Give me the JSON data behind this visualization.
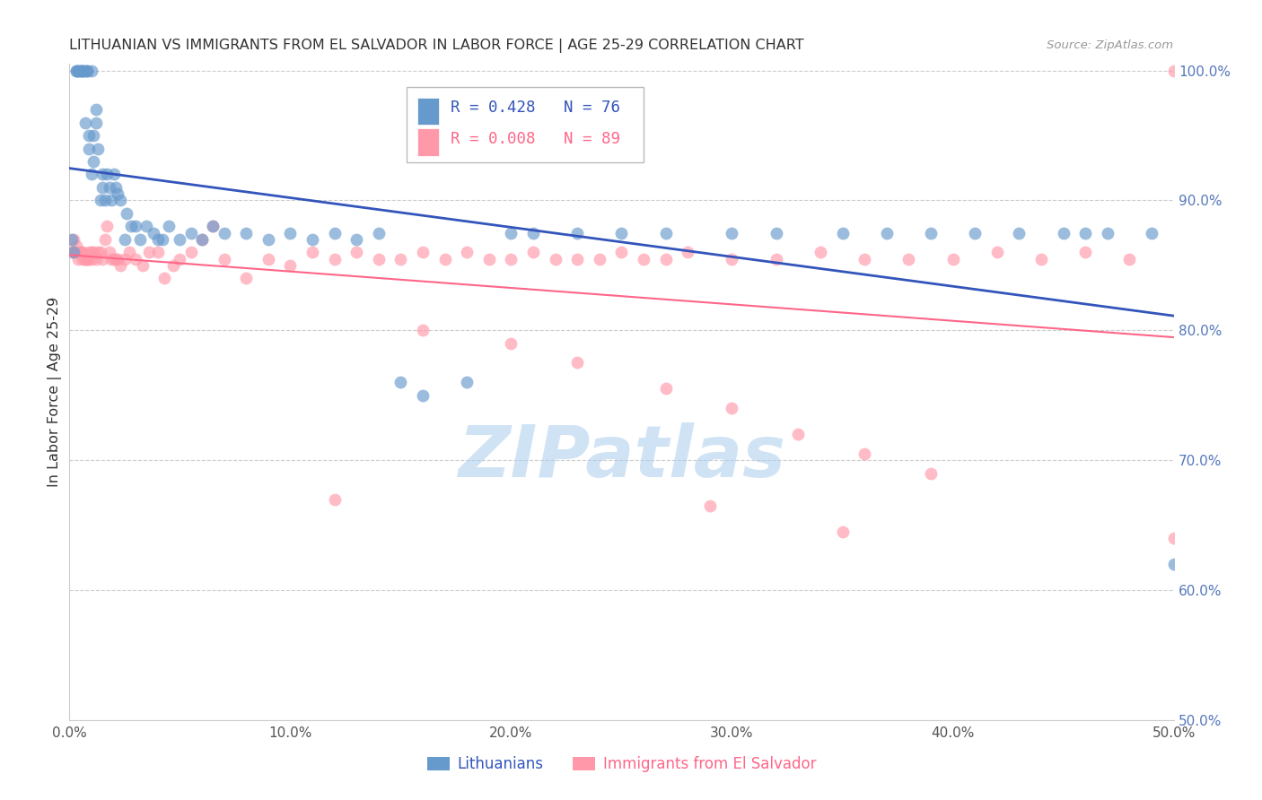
{
  "title": "LITHUANIAN VS IMMIGRANTS FROM EL SALVADOR IN LABOR FORCE | AGE 25-29 CORRELATION CHART",
  "source": "Source: ZipAtlas.com",
  "ylabel": "In Labor Force | Age 25-29",
  "xlim": [
    0.0,
    0.5
  ],
  "ylim": [
    0.5,
    1.005
  ],
  "xtick_vals": [
    0.0,
    0.1,
    0.2,
    0.3,
    0.4,
    0.5
  ],
  "ytick_vals": [
    0.5,
    0.6,
    0.7,
    0.8,
    0.9,
    1.0
  ],
  "xtick_labels": [
    "0.0%",
    "10.0%",
    "20.0%",
    "30.0%",
    "40.0%",
    "50.0%"
  ],
  "ytick_labels": [
    "50.0%",
    "60.0%",
    "70.0%",
    "80.0%",
    "90.0%",
    "100.0%"
  ],
  "blue_color": "#6699CC",
  "pink_color": "#FF99AA",
  "blue_line_color": "#3355BB",
  "pink_line_color": "#FF6688",
  "axis_color": "#5577BB",
  "grid_color": "#CCCCCC",
  "watermark_color": "#AACCEE",
  "title_color": "#333333",
  "source_color": "#999999",
  "ylabel_color": "#333333",
  "legend_label_blue": "Lithuanians",
  "legend_label_pink": "Immigrants from El Salvador",
  "blue_R": 0.428,
  "blue_N": 76,
  "pink_R": 0.008,
  "pink_N": 89,
  "blue_x": [
    0.001,
    0.002,
    0.003,
    0.003,
    0.004,
    0.004,
    0.005,
    0.005,
    0.006,
    0.006,
    0.007,
    0.007,
    0.008,
    0.008,
    0.009,
    0.009,
    0.01,
    0.01,
    0.011,
    0.011,
    0.012,
    0.012,
    0.013,
    0.014,
    0.015,
    0.015,
    0.016,
    0.017,
    0.018,
    0.019,
    0.02,
    0.021,
    0.022,
    0.023,
    0.025,
    0.026,
    0.028,
    0.03,
    0.032,
    0.035,
    0.038,
    0.04,
    0.042,
    0.045,
    0.05,
    0.055,
    0.06,
    0.065,
    0.07,
    0.08,
    0.09,
    0.1,
    0.11,
    0.12,
    0.13,
    0.14,
    0.15,
    0.16,
    0.18,
    0.2,
    0.21,
    0.23,
    0.25,
    0.27,
    0.3,
    0.32,
    0.35,
    0.37,
    0.39,
    0.41,
    0.43,
    0.45,
    0.46,
    0.47,
    0.49,
    0.5
  ],
  "blue_y": [
    0.87,
    0.86,
    1.0,
    1.0,
    1.0,
    1.0,
    1.0,
    1.0,
    1.0,
    1.0,
    1.0,
    0.96,
    1.0,
    1.0,
    0.95,
    0.94,
    1.0,
    0.92,
    0.93,
    0.95,
    0.96,
    0.97,
    0.94,
    0.9,
    0.92,
    0.91,
    0.9,
    0.92,
    0.91,
    0.9,
    0.92,
    0.91,
    0.905,
    0.9,
    0.87,
    0.89,
    0.88,
    0.88,
    0.87,
    0.88,
    0.875,
    0.87,
    0.87,
    0.88,
    0.87,
    0.875,
    0.87,
    0.88,
    0.875,
    0.875,
    0.87,
    0.875,
    0.87,
    0.875,
    0.87,
    0.875,
    0.76,
    0.75,
    0.76,
    0.875,
    0.875,
    0.875,
    0.875,
    0.875,
    0.875,
    0.875,
    0.875,
    0.875,
    0.875,
    0.875,
    0.875,
    0.875,
    0.875,
    0.875,
    0.875,
    0.62
  ],
  "pink_x": [
    0.001,
    0.002,
    0.002,
    0.003,
    0.003,
    0.004,
    0.004,
    0.005,
    0.005,
    0.006,
    0.006,
    0.007,
    0.007,
    0.008,
    0.008,
    0.009,
    0.009,
    0.01,
    0.01,
    0.011,
    0.012,
    0.013,
    0.014,
    0.015,
    0.016,
    0.017,
    0.018,
    0.019,
    0.02,
    0.021,
    0.022,
    0.023,
    0.025,
    0.027,
    0.03,
    0.033,
    0.036,
    0.04,
    0.043,
    0.047,
    0.05,
    0.055,
    0.06,
    0.065,
    0.07,
    0.08,
    0.09,
    0.1,
    0.11,
    0.12,
    0.13,
    0.14,
    0.15,
    0.16,
    0.17,
    0.18,
    0.19,
    0.2,
    0.21,
    0.22,
    0.23,
    0.24,
    0.25,
    0.26,
    0.27,
    0.28,
    0.3,
    0.32,
    0.34,
    0.36,
    0.38,
    0.4,
    0.42,
    0.44,
    0.46,
    0.48,
    0.5,
    0.16,
    0.2,
    0.23,
    0.27,
    0.3,
    0.33,
    0.36,
    0.39,
    0.12,
    0.29,
    0.35,
    0.5
  ],
  "pink_y": [
    0.86,
    0.87,
    0.86,
    0.865,
    0.86,
    0.86,
    0.855,
    0.86,
    0.86,
    0.86,
    0.855,
    0.855,
    0.855,
    0.855,
    0.855,
    0.86,
    0.855,
    0.855,
    0.86,
    0.86,
    0.855,
    0.86,
    0.86,
    0.855,
    0.87,
    0.88,
    0.86,
    0.855,
    0.855,
    0.855,
    0.855,
    0.85,
    0.855,
    0.86,
    0.855,
    0.85,
    0.86,
    0.86,
    0.84,
    0.85,
    0.855,
    0.86,
    0.87,
    0.88,
    0.855,
    0.84,
    0.855,
    0.85,
    0.86,
    0.855,
    0.86,
    0.855,
    0.855,
    0.86,
    0.855,
    0.86,
    0.855,
    0.855,
    0.86,
    0.855,
    0.855,
    0.855,
    0.86,
    0.855,
    0.855,
    0.86,
    0.855,
    0.855,
    0.86,
    0.855,
    0.855,
    0.855,
    0.86,
    0.855,
    0.86,
    0.855,
    1.0,
    0.8,
    0.79,
    0.775,
    0.755,
    0.74,
    0.72,
    0.705,
    0.69,
    0.67,
    0.665,
    0.645,
    0.64
  ]
}
